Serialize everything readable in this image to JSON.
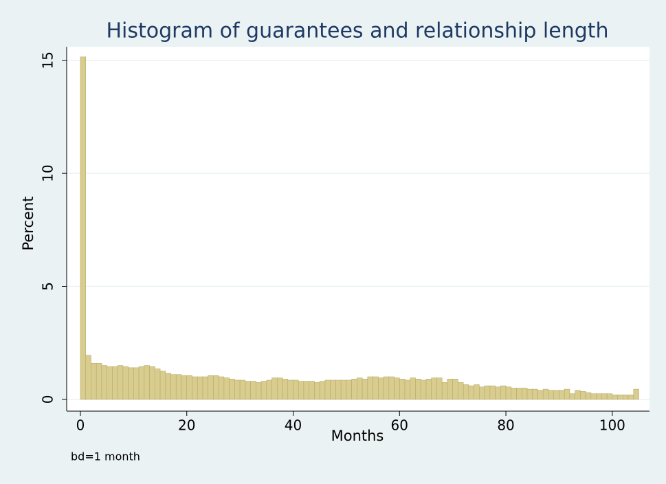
{
  "chart_data": {
    "type": "histogram",
    "title": "Histogram of guarantees and relationship length",
    "x_label": "Months",
    "y_label": "Percent",
    "note": "bd=1 month",
    "bins": [
      0,
      1,
      2,
      3,
      4,
      5,
      6,
      7,
      8,
      9,
      10,
      11,
      12,
      13,
      14,
      15,
      16,
      17,
      18,
      19,
      20,
      21,
      22,
      23,
      24,
      25,
      26,
      27,
      28,
      29,
      30,
      31,
      32,
      33,
      34,
      35,
      36,
      37,
      38,
      39,
      40,
      41,
      42,
      43,
      44,
      45,
      46,
      47,
      48,
      49,
      50,
      51,
      52,
      53,
      54,
      55,
      56,
      57,
      58,
      59,
      60,
      61,
      62,
      63,
      64,
      65,
      66,
      67,
      68,
      69,
      70,
      71,
      72,
      73,
      74,
      75,
      76,
      77,
      78,
      79,
      80,
      81,
      82,
      83,
      84,
      85,
      86,
      87,
      88,
      89,
      90,
      91,
      92,
      93,
      94,
      95,
      96,
      97,
      98,
      99,
      100,
      101,
      102,
      103,
      104,
      105
    ],
    "values": [
      15.15,
      1.95,
      1.6,
      1.6,
      1.5,
      1.45,
      1.45,
      1.5,
      1.45,
      1.4,
      1.4,
      1.45,
      1.5,
      1.45,
      1.35,
      1.25,
      1.15,
      1.1,
      1.1,
      1.05,
      1.05,
      1.0,
      1.0,
      1.0,
      1.05,
      1.05,
      1.0,
      0.95,
      0.9,
      0.85,
      0.85,
      0.8,
      0.8,
      0.75,
      0.8,
      0.85,
      0.95,
      0.95,
      0.9,
      0.85,
      0.85,
      0.8,
      0.8,
      0.8,
      0.75,
      0.8,
      0.85,
      0.85,
      0.85,
      0.85,
      0.85,
      0.9,
      0.95,
      0.9,
      1.0,
      1.0,
      0.95,
      1.0,
      1.0,
      0.95,
      0.9,
      0.85,
      0.95,
      0.9,
      0.85,
      0.9,
      0.95,
      0.95,
      0.75,
      0.9,
      0.9,
      0.75,
      0.65,
      0.6,
      0.65,
      0.55,
      0.6,
      0.6,
      0.55,
      0.6,
      0.55,
      0.5,
      0.5,
      0.5,
      0.45,
      0.45,
      0.4,
      0.45,
      0.4,
      0.4,
      0.4,
      0.45,
      0.25,
      0.4,
      0.35,
      0.3,
      0.25,
      0.25,
      0.25,
      0.25,
      0.2,
      0.2,
      0.2,
      0.2,
      0.45
    ],
    "color": "#d8cc8f",
    "edge_color": "#b9aa66",
    "xlim": [
      -2.58,
      107
    ],
    "ylim": [
      -0.52,
      15.6
    ],
    "xticks": [
      0,
      20,
      40,
      60,
      80,
      100
    ],
    "yticks": [
      0,
      5,
      10,
      15
    ],
    "grid": true
  }
}
